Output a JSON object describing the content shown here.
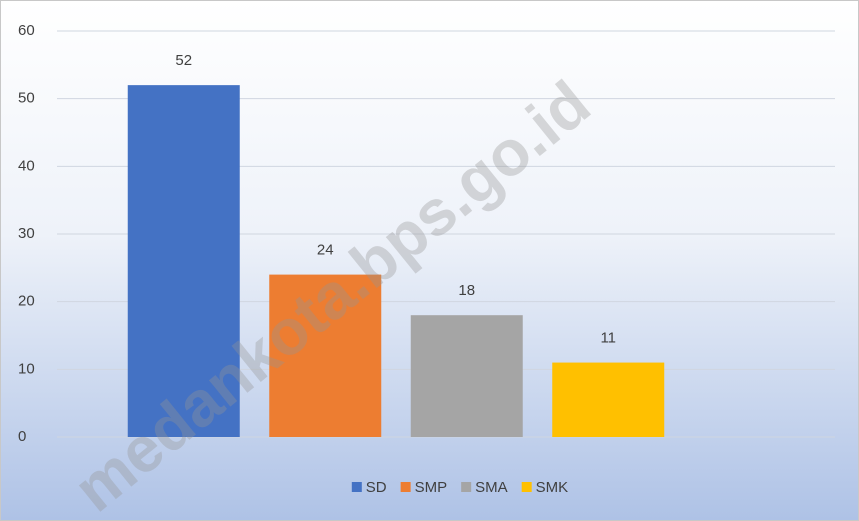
{
  "chart_data": {
    "type": "bar",
    "series": [
      {
        "name": "SD",
        "color": "#4472c4",
        "values": [
          52
        ]
      },
      {
        "name": "SMP",
        "color": "#ed7d31",
        "values": [
          24
        ]
      },
      {
        "name": "SMA",
        "color": "#a5a5a5",
        "values": [
          18
        ]
      },
      {
        "name": "SMK",
        "color": "#ffc000",
        "values": [
          11
        ]
      }
    ],
    "ylim": [
      0,
      60
    ],
    "yticks": [
      0,
      10,
      20,
      30,
      40,
      50,
      60
    ],
    "grid": true,
    "legend": "bottom",
    "watermark": "medankota.bps.go.id"
  }
}
